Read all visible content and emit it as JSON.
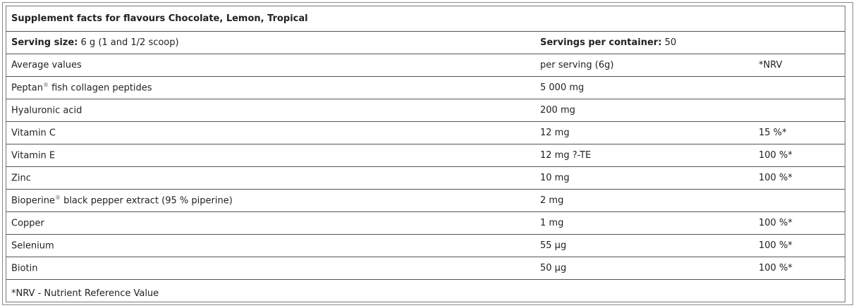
{
  "title": "Supplement facts for flavours Chocolate, Lemon, Tropical",
  "serving_size": {
    "label": "Serving size:",
    "value": "6 g (1 and 1/2 scoop)"
  },
  "servings_per_container": {
    "label": "Servings per container:",
    "value": "50"
  },
  "header": {
    "name": "Average values",
    "per_serving": "per serving (6g)",
    "nrv": "*NRV"
  },
  "rows": [
    {
      "name": "Peptan",
      "sup": "®",
      "rest": " fish collagen peptides",
      "amount": "5 000 mg",
      "nrv": ""
    },
    {
      "name": "Hyaluronic acid",
      "sup": "",
      "rest": "",
      "amount": "200 mg",
      "nrv": ""
    },
    {
      "name": "Vitamin C",
      "sup": "",
      "rest": "",
      "amount": "12 mg",
      "nrv": "15 %*"
    },
    {
      "name": "Vitamin E",
      "sup": "",
      "rest": "",
      "amount": "12 mg ?-TE",
      "nrv": "100 %*"
    },
    {
      "name": "Zinc",
      "sup": "",
      "rest": "",
      "amount": "10 mg",
      "nrv": "100 %*"
    },
    {
      "name": "Bioperine",
      "sup": "®",
      "rest": " black pepper extract (95 % piperine)",
      "amount": "2 mg",
      "nrv": ""
    },
    {
      "name": "Copper",
      "sup": "",
      "rest": "",
      "amount": "1 mg",
      "nrv": "100 %*"
    },
    {
      "name": "Selenium",
      "sup": "",
      "rest": "",
      "amount": "55 µg",
      "nrv": "100 %*"
    },
    {
      "name": "Biotin",
      "sup": "",
      "rest": "",
      "amount": "50 µg",
      "nrv": "100 %*"
    }
  ],
  "footnote": "*NRV - Nutrient Reference Value"
}
